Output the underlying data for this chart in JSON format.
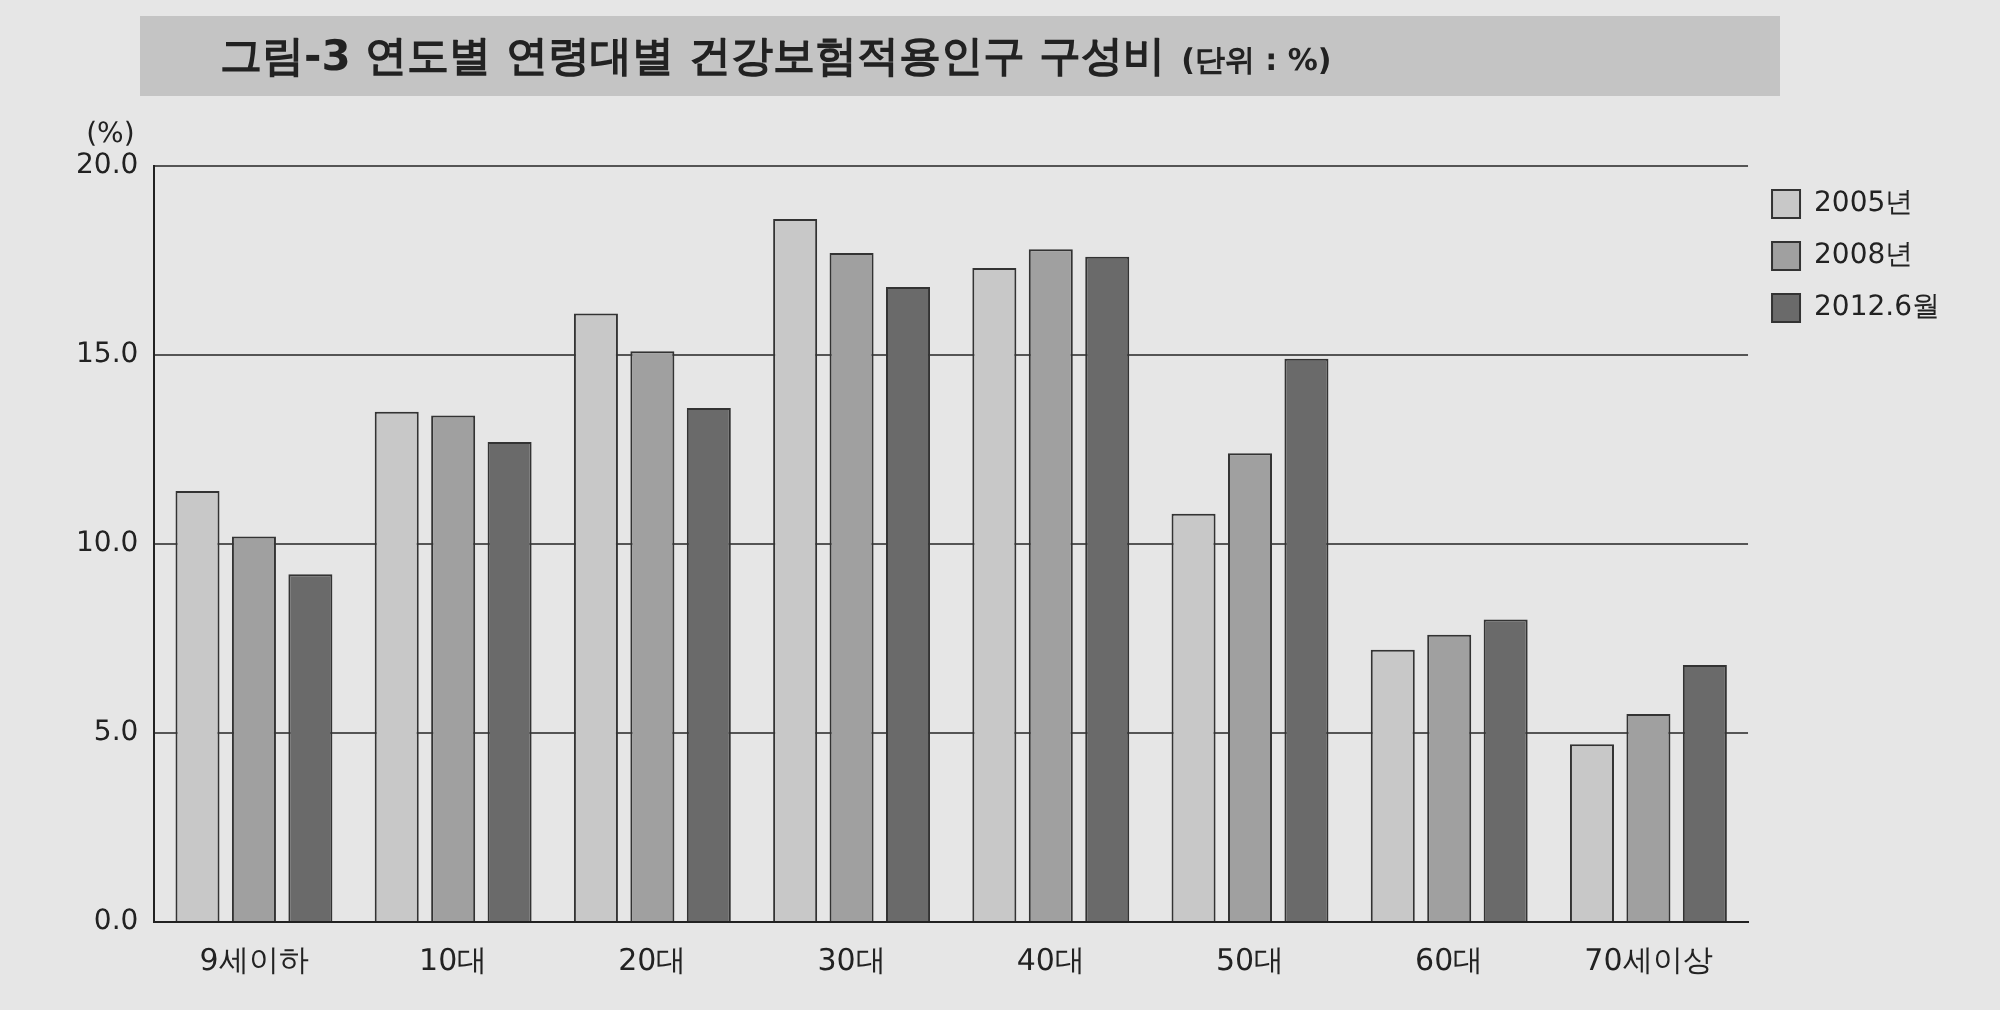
{
  "chart_data": {
    "type": "bar",
    "title": "그림-3 연도별 연령대별 건강보험적용인구 구성비",
    "subtitle": "(단위 : %)",
    "ylabel": "(%)",
    "categories": [
      "9세이하",
      "10대",
      "20대",
      "30대",
      "40대",
      "50대",
      "60대",
      "70세이상"
    ],
    "series": [
      {
        "name": "2005년",
        "color": "#c8c8c8",
        "values": [
          11.4,
          13.5,
          16.1,
          18.6,
          17.3,
          10.8,
          7.2,
          4.7
        ]
      },
      {
        "name": "2008년",
        "color": "#a0a0a0",
        "values": [
          10.2,
          13.4,
          15.1,
          17.7,
          17.8,
          12.4,
          7.6,
          5.5
        ]
      },
      {
        "name": "2012.6월",
        "color": "#6a6a6a",
        "values": [
          9.2,
          12.7,
          13.6,
          16.8,
          17.6,
          14.9,
          8.0,
          6.8
        ]
      }
    ],
    "ylim": [
      0,
      20
    ],
    "yticks": [
      {
        "value": 0,
        "label": "0.0"
      },
      {
        "value": 5,
        "label": "5.0"
      },
      {
        "value": 10,
        "label": "10.0"
      },
      {
        "value": 15,
        "label": "15.0"
      },
      {
        "value": 20,
        "label": "20.0"
      }
    ],
    "grid": "y",
    "legend": "right"
  }
}
